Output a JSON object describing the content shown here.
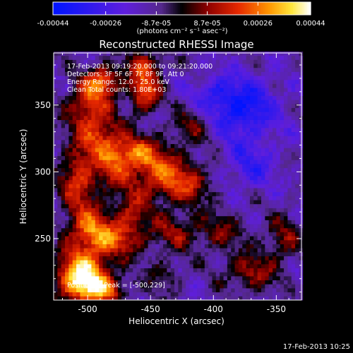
{
  "chart_data": {
    "type": "heatmap",
    "title": "Reconstructed RHESSI Image",
    "xlabel": "Heliocentric X (arcsec)",
    "ylabel": "Heliocentric Y (arcsec)",
    "xlim": [
      -527,
      -330
    ],
    "ylim": [
      204,
      389
    ],
    "x_ticks": [
      {
        "value": -500,
        "label": "-500"
      },
      {
        "value": -450,
        "label": "-450"
      },
      {
        "value": -400,
        "label": "-400"
      },
      {
        "value": -350,
        "label": "-350"
      }
    ],
    "y_ticks": [
      {
        "value": 250,
        "label": "250"
      },
      {
        "value": 300,
        "label": "300"
      },
      {
        "value": 350,
        "label": "350"
      }
    ],
    "colorbar": {
      "min": -0.00044,
      "max": 0.00044,
      "ticks": [
        {
          "value": -0.00044,
          "label": "-0.00044"
        },
        {
          "value": -0.00026,
          "label": "-0.00026"
        },
        {
          "value": -8.7e-05,
          "label": "-8.7e-05"
        },
        {
          "value": 8.7e-05,
          "label": "8.7e-05"
        },
        {
          "value": 0.00026,
          "label": "0.00026"
        },
        {
          "value": 0.00044,
          "label": "0.00044"
        }
      ],
      "unit_label": "(photons cm⁻² s⁻¹ asec⁻²)"
    },
    "annotations": [
      "17-Feb-2013 09:19:20.000 to 09:21:20.000",
      "Detectors: 3F 5F 6F 7F 8F 9F, Att 0",
      "Energy Range: 12.0 - 25.0 keV",
      "Clean     Total counts: 1.80E+03"
    ],
    "peak_label": "Position of Peak = [-500,229]",
    "peak": {
      "x": -500,
      "y": 229
    },
    "blobs": [
      {
        "x": -505,
        "y": 222,
        "sx": 14,
        "sy": 12,
        "v": 0.00052
      },
      {
        "x": -490,
        "y": 212,
        "sx": 14,
        "sy": 8,
        "v": 0.0003
      },
      {
        "x": -500,
        "y": 258,
        "sx": 12,
        "sy": 14,
        "v": 0.0003
      },
      {
        "x": -478,
        "y": 250,
        "sx": 16,
        "sy": 10,
        "v": 0.00028
      },
      {
        "x": -508,
        "y": 295,
        "sx": 10,
        "sy": 14,
        "v": 0.0003
      },
      {
        "x": -490,
        "y": 325,
        "sx": 14,
        "sy": 12,
        "v": 0.00028
      },
      {
        "x": -465,
        "y": 315,
        "sx": 14,
        "sy": 8,
        "v": 0.00026
      },
      {
        "x": -500,
        "y": 350,
        "sx": 12,
        "sy": 12,
        "v": 0.0003
      },
      {
        "x": -488,
        "y": 368,
        "sx": 10,
        "sy": 8,
        "v": 0.00032
      },
      {
        "x": -455,
        "y": 360,
        "sx": 8,
        "sy": 10,
        "v": 0.00036
      },
      {
        "x": -445,
        "y": 300,
        "sx": 18,
        "sy": 14,
        "v": 0.0003
      },
      {
        "x": -420,
        "y": 290,
        "sx": 14,
        "sy": 10,
        "v": 0.0002
      },
      {
        "x": -430,
        "y": 255,
        "sx": 14,
        "sy": 10,
        "v": 0.00018
      },
      {
        "x": -465,
        "y": 270,
        "sx": 10,
        "sy": 10,
        "v": 0.0002
      },
      {
        "x": -415,
        "y": 335,
        "sx": 12,
        "sy": 10,
        "v": 0.00016
      },
      {
        "x": -395,
        "y": 255,
        "sx": 14,
        "sy": 10,
        "v": 0.00016
      },
      {
        "x": -370,
        "y": 225,
        "sx": 14,
        "sy": 10,
        "v": 0.00022
      },
      {
        "x": -345,
        "y": 250,
        "sx": 10,
        "sy": 12,
        "v": 0.00018
      },
      {
        "x": -440,
        "y": 222,
        "sx": 10,
        "sy": 8,
        "v": 0.00012
      },
      {
        "x": -455,
        "y": 380,
        "sx": 12,
        "sy": 8,
        "v": 0.00022
      },
      {
        "x": -480,
        "y": 300,
        "sx": 10,
        "sy": 10,
        "v": 0.00018
      },
      {
        "x": -378,
        "y": 348,
        "sx": 20,
        "sy": 16,
        "v": -0.00028
      },
      {
        "x": -370,
        "y": 305,
        "sx": 14,
        "sy": 12,
        "v": -0.00016
      },
      {
        "x": -400,
        "y": 360,
        "sx": 10,
        "sy": 8,
        "v": -0.0001
      }
    ]
  },
  "footer": {
    "timestamp": "17-Feb-2013 10:25"
  }
}
